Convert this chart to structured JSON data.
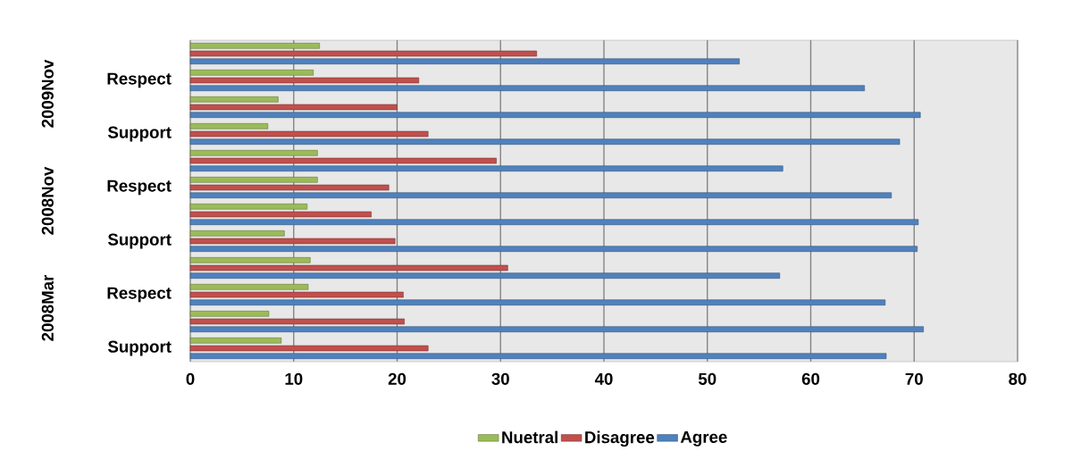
{
  "chart_data": {
    "type": "bar",
    "orientation": "horizontal",
    "categories": [
      null,
      "Respect",
      null,
      "Support",
      null,
      "Respect",
      null,
      "Support",
      null,
      "Respect",
      null,
      "Support"
    ],
    "series": [
      {
        "name": "Nuetral",
        "color": "#9bbb59",
        "values": [
          12.5,
          11.9,
          8.5,
          7.5,
          12.3,
          12.3,
          11.3,
          9.1,
          11.6,
          11.4,
          7.6,
          8.8
        ]
      },
      {
        "name": "Disagree",
        "color": "#c0504d",
        "values": [
          33.5,
          22.1,
          20.0,
          23.0,
          29.6,
          19.2,
          17.5,
          19.8,
          30.7,
          20.6,
          20.7,
          23.0
        ]
      },
      {
        "name": "Agree",
        "color": "#4f81bd",
        "values": [
          53.1,
          65.2,
          70.6,
          68.6,
          57.3,
          67.8,
          70.4,
          70.3,
          57.0,
          67.2,
          70.9,
          67.3
        ]
      }
    ],
    "annotations": [
      "2009Nov",
      "2008Nov",
      "2008Mar"
    ],
    "xlim": [
      0,
      80
    ],
    "xticks": [
      0,
      10,
      20,
      30,
      40,
      50,
      60,
      70,
      80
    ],
    "grid": "x",
    "legend": "bottom"
  }
}
